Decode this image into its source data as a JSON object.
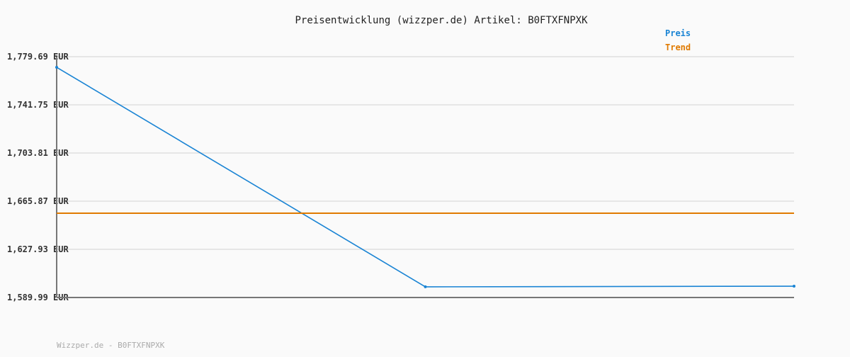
{
  "chart_data": {
    "type": "line",
    "title": "Preisentwicklung (wizzper.de) Artikel: B0FTXFNPXK",
    "xlabel": "",
    "ylabel": "",
    "x": [
      0,
      1,
      2
    ],
    "ylim": [
      1589.99,
      1779.69
    ],
    "yticks": [
      "1,589.99 EUR",
      "1,627.93 EUR",
      "1,665.87 EUR",
      "1,703.81 EUR",
      "1,741.75 EUR",
      "1,779.69 EUR"
    ],
    "ytick_values": [
      1589.99,
      1627.93,
      1665.87,
      1703.81,
      1741.75,
      1779.69
    ],
    "grid": true,
    "legend": "top-right",
    "series": [
      {
        "name": "Preis",
        "values": [
          1771.3,
          1598.4,
          1598.9
        ],
        "color": "#1a84d4"
      },
      {
        "name": "Trend",
        "values": [
          1656.4,
          1656.4,
          1656.4
        ],
        "color": "#e07a00"
      }
    ]
  },
  "footer": "Wizzper.de - B0FTXFNPXK"
}
